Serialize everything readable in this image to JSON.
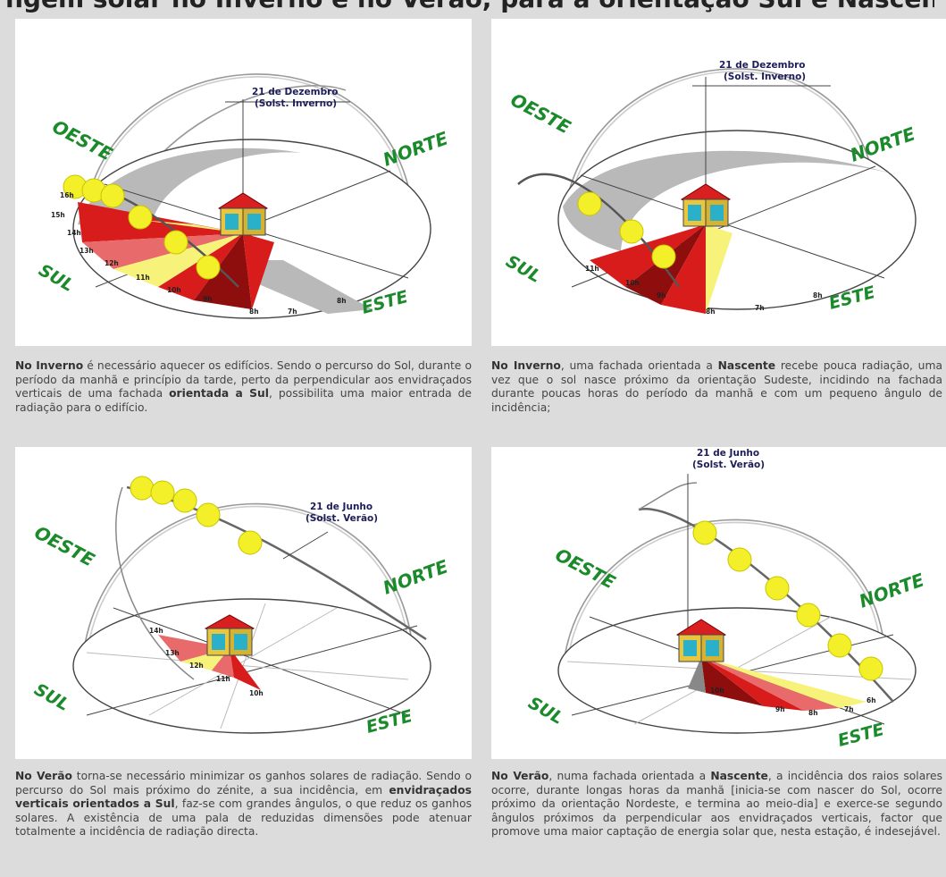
{
  "page_title": "ngem solar no Inverno e no Verão, para a orientação Sul e Nascente",
  "directions": {
    "west": "OESTE",
    "north": "NORTE",
    "south": "SUL",
    "east": "ESTE"
  },
  "panels": [
    {
      "date": "21 de Dezembro",
      "season": "(Solst. Inverno)",
      "hours": [
        "16h",
        "15h",
        "14h",
        "13h",
        "12h",
        "11h",
        "10h",
        "9h",
        "8h",
        "7h",
        "8h"
      ],
      "caption": {
        "p1": "No Inverno",
        "p2": " é necessário aquecer os edifícios. Sendo o percurso do Sol, durante o período da manhã e princípio da tarde, perto da perpendicular aos envidraçados verticais de uma fachada ",
        "p3": "orientada a Sul",
        "p4": ", possibilita uma maior entrada de radiação para o edifício."
      }
    },
    {
      "date": "21 de Dezembro",
      "season": "(Solst. Inverno)",
      "hours": [
        "11h",
        "10h",
        "9h",
        "8h",
        "7h",
        "8h"
      ],
      "caption": {
        "p1": "No Inverno",
        "p2": ", uma fachada orientada a ",
        "p3": "Nascente",
        "p4": " recebe pouca radiação, uma vez que o sol nasce próximo da orientação Sudeste, incidindo na fachada durante poucas horas do período da manhã e com um pequeno ângulo de incidência;"
      }
    },
    {
      "date": "21 de Junho",
      "season": "(Solst. Verão)",
      "hours": [
        "14h",
        "13h",
        "12h",
        "11h",
        "10h"
      ],
      "caption": {
        "p1": "No Verão",
        "p2": " torna-se necessário minimizar os ganhos solares de radiação. Sendo o percurso do Sol mais próximo do zénite, a sua incidência, em ",
        "p3": "envidraçados verticais orientados a Sul",
        "p4": ", faz-se com grandes ângulos, o que reduz os ganhos solares. A existência de uma pala de reduzidas dimensões pode atenuar totalmente a incidência de radiação directa."
      }
    },
    {
      "date": "21 de Junho",
      "season": "(Solst. Verão)",
      "hours": [
        "10h",
        "9h",
        "8h",
        "7h",
        "6h"
      ],
      "caption": {
        "p1": "No Verão",
        "p2": ", numa fachada orientada a ",
        "p3": "Nascente",
        "p4": ", a incidência dos raios solares ocorre, durante longas horas da manhã [inicia-se com nascer do Sol, ocorre próximo da orientação Nordeste, e termina ao meio-dia] e exerce-se segundo ângulos próximos da perpendicular aos envidraçados verticais, factor que promove uma maior captação de energia solar que, nesta estação, é indesejável."
      }
    }
  ],
  "colors": {
    "sun": "#f3f02a",
    "red": "#d81c1c",
    "darkred": "#8e0d0d",
    "pink": "#e86a6a",
    "yellow": "#f6f27a",
    "gray": "#b9b9b9",
    "green": "#1a8a2a",
    "house_roof": "#d82020",
    "house_wall": "#e8c640",
    "window": "#2ab0c8"
  }
}
